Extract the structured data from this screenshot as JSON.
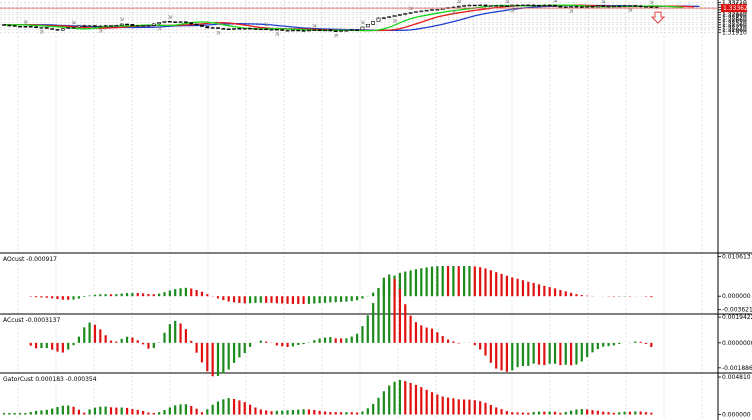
{
  "colors": {
    "bull": "#1a8a1a",
    "bear": "#e01010",
    "candle": "#000000",
    "ma_fast": "#17d417",
    "ma_mid": "#e61b1b",
    "ma_slow": "#1c3fd0",
    "price_line": "#e05050",
    "grid": "#c8c8c8",
    "arrow": "#e04040",
    "fractal": "#909090"
  },
  "icons": [
    "fractal-arrow-icon",
    "sell-arrow-icon"
  ],
  "chart_data": [
    {
      "type": "candlestick",
      "panel": "main",
      "ylim": [
        1.187,
        1.3385
      ],
      "y_ticks": [
        "1.33710",
        "1.33560",
        "1.33410",
        "1.33260",
        "1.33110",
        "1.32960",
        "1.32810",
        "1.32660",
        "1.32510",
        "1.32360",
        "1.32210",
        "1.32060",
        "1.31910"
      ],
      "tick_values": [
        1.3371,
        1.3356,
        1.3341,
        1.3326,
        1.3311,
        1.3296,
        1.3281,
        1.3266,
        1.3251,
        1.3236,
        1.3221,
        1.3206,
        1.3191
      ],
      "current_price": "1.33362",
      "current_price_value": 1.33362
    },
    {
      "type": "bar",
      "panel": "ao",
      "title": "AOcust -0.000917",
      "ylim": [
        -0.0045,
        0.0113
      ],
      "y_ticks": [
        "0.0106137",
        "0.000000",
        "-0.003621"
      ],
      "tick_values": [
        0.0106137,
        0.0,
        -0.003621
      ]
    },
    {
      "type": "bar",
      "panel": "ac",
      "title": "ACcust -0.0003137",
      "ylim": [
        -0.0022,
        0.0021
      ],
      "y_ticks": [
        "0.0019422",
        "0.0000000",
        "-0.0018869"
      ],
      "tick_values": [
        0.0019422,
        0.0,
        -0.0018869
      ]
    },
    {
      "type": "bar",
      "panel": "gator",
      "title": "GatorCust 0.000183 -0.000354",
      "ylim": [
        -0.0007,
        0.0052
      ],
      "y_ticks": [
        "0.004810",
        "0.000000"
      ],
      "tick_values": [
        0.00481,
        0.0
      ]
    }
  ]
}
